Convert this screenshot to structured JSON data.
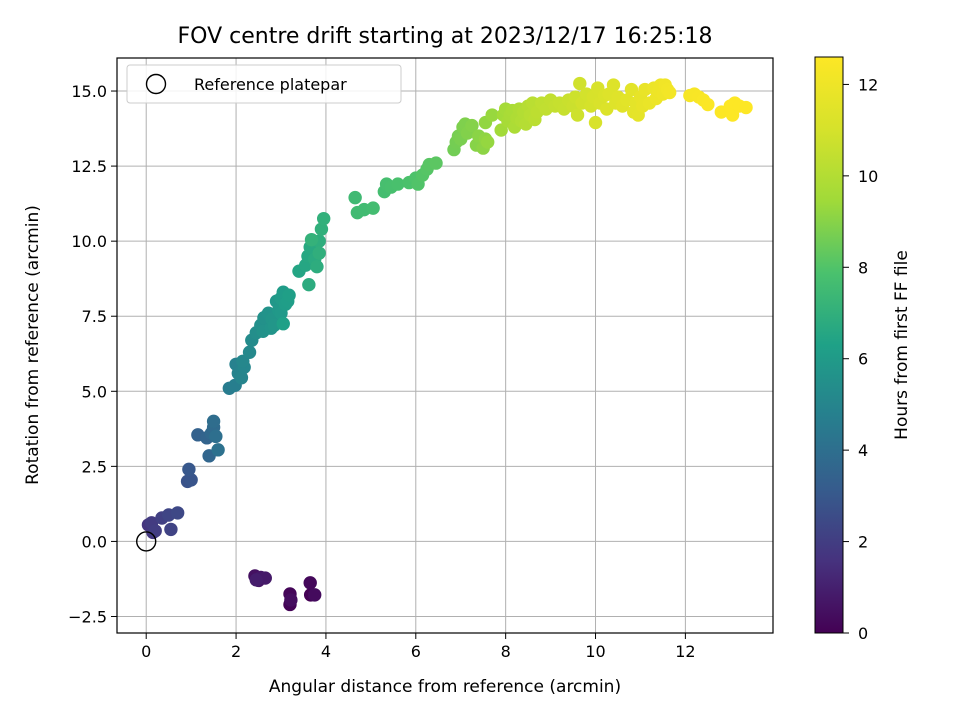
{
  "chart_data": {
    "type": "scatter",
    "title": "FOV centre drift starting at 2023/12/17 16:25:18",
    "xlabel": "Angular distance from reference (arcmin)",
    "ylabel": "Rotation from reference (arcmin)",
    "xlim": [
      -0.65,
      13.95
    ],
    "ylim": [
      -3.05,
      16.1
    ],
    "x_ticks": [
      0,
      2,
      4,
      6,
      8,
      10,
      12
    ],
    "y_ticks": [
      -2.5,
      0.0,
      2.5,
      5.0,
      7.5,
      10.0,
      12.5,
      15.0
    ],
    "x_tick_labels": [
      "0",
      "2",
      "4",
      "6",
      "8",
      "10",
      "12"
    ],
    "y_tick_labels": [
      "−2.5",
      "0.0",
      "2.5",
      "5.0",
      "7.5",
      "10.0",
      "12.5",
      "15.0"
    ],
    "grid": true,
    "legend": {
      "placement": "upper-left",
      "label": "Reference platepar"
    },
    "reference_point": {
      "x": 0,
      "y": 0
    },
    "colorbar": {
      "label": "Hours from first FF file",
      "colormap": "viridis",
      "range": [
        0,
        12.6
      ],
      "ticks": [
        0,
        2,
        4,
        6,
        8,
        10,
        12
      ],
      "tick_labels": [
        "0",
        "2",
        "4",
        "6",
        "8",
        "10",
        "12"
      ]
    },
    "points": [
      [
        3.66,
        -1.78,
        0.0
      ],
      [
        3.2,
        -2.1,
        0.08
      ],
      [
        3.2,
        -1.75,
        0.16
      ],
      [
        3.65,
        -1.38,
        0.24
      ],
      [
        3.75,
        -1.78,
        0.32
      ],
      [
        3.22,
        -1.95,
        0.4
      ],
      [
        2.42,
        -1.15,
        0.5
      ],
      [
        2.5,
        -1.3,
        0.6
      ],
      [
        2.55,
        -1.2,
        0.7
      ],
      [
        2.65,
        -1.22,
        0.8
      ],
      [
        2.45,
        -1.28,
        0.9
      ],
      [
        0.05,
        0.55,
        1.7
      ],
      [
        0.15,
        0.3,
        1.8
      ],
      [
        0.12,
        0.62,
        1.9
      ],
      [
        0.2,
        0.35,
        2.0
      ],
      [
        0.35,
        0.78,
        2.1
      ],
      [
        0.55,
        0.4,
        2.2
      ],
      [
        0.5,
        0.88,
        2.3
      ],
      [
        0.7,
        0.95,
        2.4
      ],
      [
        0.92,
        2.0,
        2.8
      ],
      [
        1.0,
        2.05,
        2.9
      ],
      [
        0.95,
        2.4,
        3.0
      ],
      [
        1.15,
        3.55,
        3.4
      ],
      [
        1.35,
        3.45,
        3.5
      ],
      [
        1.4,
        2.85,
        3.6
      ],
      [
        1.45,
        3.6,
        3.7
      ],
      [
        1.5,
        3.8,
        3.8
      ],
      [
        1.5,
        4.0,
        3.9
      ],
      [
        1.55,
        3.5,
        4.0
      ],
      [
        1.6,
        3.05,
        4.1
      ],
      [
        1.85,
        5.1,
        4.6
      ],
      [
        1.98,
        5.2,
        4.7
      ],
      [
        2.0,
        5.9,
        4.8
      ],
      [
        2.05,
        5.6,
        4.9
      ],
      [
        2.12,
        5.45,
        5.0
      ],
      [
        2.18,
        5.8,
        5.05
      ],
      [
        2.15,
        6.0,
        5.1
      ],
      [
        2.3,
        6.3,
        5.2
      ],
      [
        2.35,
        6.7,
        5.3
      ],
      [
        2.45,
        6.95,
        5.4
      ],
      [
        2.55,
        7.2,
        5.5
      ],
      [
        2.62,
        7.45,
        5.55
      ],
      [
        2.6,
        7.0,
        5.6
      ],
      [
        2.72,
        7.6,
        5.65
      ],
      [
        2.78,
        7.1,
        5.7
      ],
      [
        2.8,
        7.4,
        5.75
      ],
      [
        2.85,
        7.2,
        5.8
      ],
      [
        2.9,
        8.0,
        5.85
      ],
      [
        2.95,
        7.7,
        5.9
      ],
      [
        3.0,
        7.6,
        5.95
      ],
      [
        3.0,
        8.1,
        6.0
      ],
      [
        3.05,
        8.3,
        6.05
      ],
      [
        3.1,
        7.9,
        6.1
      ],
      [
        3.15,
        8.0,
        6.15
      ],
      [
        3.18,
        8.2,
        6.2
      ],
      [
        3.05,
        7.25,
        6.25
      ],
      [
        3.4,
        9.0,
        6.5
      ],
      [
        3.55,
        9.2,
        6.55
      ],
      [
        3.6,
        9.5,
        6.6
      ],
      [
        3.65,
        9.8,
        6.65
      ],
      [
        3.7,
        10.0,
        6.7
      ],
      [
        3.75,
        9.4,
        6.75
      ],
      [
        3.62,
        8.55,
        6.8
      ],
      [
        3.8,
        9.15,
        6.85
      ],
      [
        3.85,
        10.0,
        6.9
      ],
      [
        3.85,
        9.6,
        6.95
      ],
      [
        3.9,
        10.4,
        7.0
      ],
      [
        3.95,
        10.75,
        7.05
      ],
      [
        3.68,
        10.05,
        7.1
      ],
      [
        4.65,
        11.45,
        7.5
      ],
      [
        4.7,
        10.95,
        7.55
      ],
      [
        4.85,
        11.05,
        7.6
      ],
      [
        5.05,
        11.1,
        7.65
      ],
      [
        5.3,
        11.65,
        7.7
      ],
      [
        5.35,
        11.9,
        7.75
      ],
      [
        5.45,
        11.8,
        7.8
      ],
      [
        5.6,
        11.9,
        7.85
      ],
      [
        5.85,
        11.95,
        7.9
      ],
      [
        6.0,
        12.1,
        7.95
      ],
      [
        6.05,
        11.9,
        8.0
      ],
      [
        6.15,
        12.2,
        8.05
      ],
      [
        6.25,
        12.4,
        8.1
      ],
      [
        6.3,
        12.55,
        8.15
      ],
      [
        6.45,
        12.6,
        8.2
      ],
      [
        6.85,
        13.05,
        8.6
      ],
      [
        6.9,
        13.3,
        8.65
      ],
      [
        6.95,
        13.5,
        8.7
      ],
      [
        7.0,
        13.4,
        8.75
      ],
      [
        7.05,
        13.8,
        8.8
      ],
      [
        7.1,
        13.9,
        8.85
      ],
      [
        7.15,
        13.6,
        8.9
      ],
      [
        7.25,
        13.85,
        8.95
      ],
      [
        7.35,
        13.2,
        9.0
      ],
      [
        7.4,
        13.5,
        9.05
      ],
      [
        7.5,
        13.1,
        9.1
      ],
      [
        7.55,
        13.4,
        9.15
      ],
      [
        7.55,
        13.95,
        9.2
      ],
      [
        7.6,
        13.3,
        9.25
      ],
      [
        7.7,
        14.2,
        9.3
      ],
      [
        7.9,
        13.7,
        9.5
      ],
      [
        7.95,
        14.2,
        9.55
      ],
      [
        8.0,
        14.4,
        9.6
      ],
      [
        8.05,
        14.0,
        9.65
      ],
      [
        8.1,
        14.2,
        9.7
      ],
      [
        8.15,
        14.35,
        9.75
      ],
      [
        8.2,
        13.8,
        9.8
      ],
      [
        8.25,
        14.1,
        9.85
      ],
      [
        8.3,
        14.4,
        9.9
      ],
      [
        8.35,
        14.0,
        9.95
      ],
      [
        8.4,
        14.3,
        10.0
      ],
      [
        8.45,
        13.9,
        10.05
      ],
      [
        8.5,
        14.5,
        10.1
      ],
      [
        8.55,
        14.2,
        10.15
      ],
      [
        8.6,
        14.6,
        10.2
      ],
      [
        8.65,
        14.05,
        10.25
      ],
      [
        8.7,
        14.3,
        10.3
      ],
      [
        8.8,
        14.6,
        10.35
      ],
      [
        8.9,
        14.4,
        10.4
      ],
      [
        9.0,
        14.7,
        10.45
      ],
      [
        9.1,
        14.5,
        10.5
      ],
      [
        9.2,
        14.6,
        10.55
      ],
      [
        9.3,
        14.4,
        10.6
      ],
      [
        9.4,
        14.7,
        10.65
      ],
      [
        9.5,
        14.5,
        10.7
      ],
      [
        9.55,
        14.8,
        10.75
      ],
      [
        9.6,
        14.2,
        10.8
      ],
      [
        9.65,
        15.25,
        10.85
      ],
      [
        9.7,
        14.6,
        10.9
      ],
      [
        9.8,
        14.9,
        10.95
      ],
      [
        9.9,
        14.5,
        11.0
      ],
      [
        9.95,
        14.8,
        11.05
      ],
      [
        10.0,
        13.95,
        11.1
      ],
      [
        10.05,
        15.1,
        11.1
      ],
      [
        10.1,
        14.6,
        11.15
      ],
      [
        10.2,
        14.85,
        11.2
      ],
      [
        10.25,
        14.4,
        11.25
      ],
      [
        10.3,
        14.9,
        11.3
      ],
      [
        10.4,
        15.2,
        11.3
      ],
      [
        10.45,
        14.6,
        11.35
      ],
      [
        10.5,
        14.8,
        11.4
      ],
      [
        10.6,
        14.5,
        11.45
      ],
      [
        10.7,
        14.7,
        11.5
      ],
      [
        10.8,
        15.05,
        11.55
      ],
      [
        10.85,
        14.3,
        11.6
      ],
      [
        10.9,
        14.6,
        11.6
      ],
      [
        10.95,
        14.2,
        11.65
      ],
      [
        11.0,
        14.8,
        11.7
      ],
      [
        11.05,
        14.5,
        11.75
      ],
      [
        11.1,
        15.05,
        11.8
      ],
      [
        11.2,
        14.6,
        11.85
      ],
      [
        11.3,
        15.1,
        11.9
      ],
      [
        11.35,
        14.75,
        11.95
      ],
      [
        11.4,
        15.0,
        12.0
      ],
      [
        11.45,
        15.2,
        12.0
      ],
      [
        11.5,
        14.9,
        12.05
      ],
      [
        11.55,
        15.2,
        12.1
      ],
      [
        11.6,
        15.05,
        12.15
      ],
      [
        11.65,
        14.95,
        12.2
      ],
      [
        12.1,
        14.85,
        12.3
      ],
      [
        12.2,
        14.9,
        12.35
      ],
      [
        12.3,
        14.8,
        12.4
      ],
      [
        12.4,
        14.7,
        12.45
      ],
      [
        12.5,
        14.55,
        12.5
      ],
      [
        12.8,
        14.3,
        12.55
      ],
      [
        13.0,
        14.5,
        12.6
      ],
      [
        13.05,
        14.2,
        12.6
      ],
      [
        13.1,
        14.6,
        12.6
      ],
      [
        13.2,
        14.5,
        12.6
      ],
      [
        13.35,
        14.45,
        12.6
      ]
    ]
  }
}
